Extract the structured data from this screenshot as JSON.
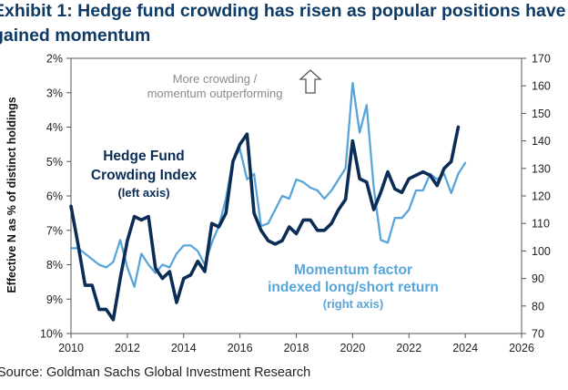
{
  "title": "Exhibit 1: Hedge fund crowding has risen as popular positions have gained momentum",
  "source": "Source: Goldman Sachs Global Investment Research",
  "colors": {
    "crowding": "#0b2d55",
    "momentum": "#58a5d9",
    "axis": "#555555",
    "title": "#0e3a66"
  },
  "chart_data": {
    "type": "line",
    "ylabel": "Effective N as % of distinct holdings",
    "x_ticks": [
      "2010",
      "2012",
      "2014",
      "2016",
      "2018",
      "2020",
      "2022",
      "2024",
      "2026"
    ],
    "xlim": [
      2010,
      2026
    ],
    "y_left": {
      "ticks": [
        "2%",
        "3%",
        "4%",
        "5%",
        "6%",
        "7%",
        "8%",
        "9%",
        "10%"
      ],
      "range": [
        2,
        10
      ],
      "inverted": true
    },
    "y_right": {
      "ticks": [
        "170",
        "160",
        "150",
        "140",
        "130",
        "120",
        "110",
        "100",
        "90",
        "80",
        "70"
      ],
      "range": [
        70,
        170
      ]
    },
    "annotations": {
      "crowding": [
        "Hedge Fund",
        "Crowding Index",
        "(left axis)"
      ],
      "momentum": [
        "Momentum factor",
        "indexed long/short return",
        "(right axis)"
      ],
      "top": [
        "More crowding /",
        "momentum outperforming"
      ]
    },
    "series": [
      {
        "key": "crowding",
        "axis": "left",
        "x": [
          2010.0,
          2010.25,
          2010.5,
          2010.75,
          2011.0,
          2011.25,
          2011.5,
          2011.75,
          2012.0,
          2012.25,
          2012.5,
          2012.75,
          2013.0,
          2013.25,
          2013.5,
          2013.75,
          2014.0,
          2014.25,
          2014.5,
          2014.75,
          2015.0,
          2015.25,
          2015.5,
          2015.75,
          2016.0,
          2016.25,
          2016.5,
          2016.75,
          2017.0,
          2017.25,
          2017.5,
          2017.75,
          2018.0,
          2018.25,
          2018.5,
          2018.75,
          2019.0,
          2019.25,
          2019.5,
          2019.75,
          2020.0,
          2020.25,
          2020.5,
          2020.75,
          2021.0,
          2021.25,
          2021.5,
          2021.75,
          2022.0,
          2022.25,
          2022.5,
          2022.75,
          2023.0,
          2023.25,
          2023.5,
          2023.75
        ],
        "values": [
          6.3,
          7.4,
          8.6,
          8.6,
          9.3,
          9.3,
          9.6,
          8.4,
          7.3,
          6.6,
          6.7,
          6.6,
          8.1,
          8.4,
          8.2,
          9.1,
          8.4,
          8.3,
          7.9,
          8.2,
          6.8,
          6.9,
          6.5,
          5.0,
          4.5,
          4.2,
          6.5,
          7.0,
          7.3,
          7.4,
          7.3,
          6.9,
          7.1,
          6.7,
          6.7,
          7.0,
          7.0,
          6.8,
          6.4,
          6.1,
          4.4,
          5.5,
          5.6,
          6.4,
          5.9,
          5.3,
          5.8,
          5.9,
          5.5,
          5.4,
          5.3,
          5.4,
          5.7,
          5.2,
          5.0,
          4.0
        ]
      },
      {
        "key": "momentum",
        "axis": "right",
        "x": [
          2010.0,
          2010.25,
          2010.5,
          2010.75,
          2011.0,
          2011.25,
          2011.5,
          2011.75,
          2012.0,
          2012.25,
          2012.5,
          2012.75,
          2013.0,
          2013.25,
          2013.5,
          2013.75,
          2014.0,
          2014.25,
          2014.5,
          2014.75,
          2015.0,
          2015.25,
          2015.5,
          2015.75,
          2016.0,
          2016.25,
          2016.5,
          2016.75,
          2017.0,
          2017.25,
          2017.5,
          2017.75,
          2018.0,
          2018.25,
          2018.5,
          2018.75,
          2019.0,
          2019.25,
          2019.5,
          2019.75,
          2020.0,
          2020.25,
          2020.5,
          2020.75,
          2021.0,
          2021.25,
          2021.5,
          2021.75,
          2022.0,
          2022.25,
          2022.5,
          2022.75,
          2023.0,
          2023.25,
          2023.5,
          2023.75,
          2024.0
        ],
        "values": [
          101,
          101,
          99,
          97,
          95,
          94,
          96,
          104,
          94,
          87,
          99,
          95,
          92,
          95,
          94,
          99,
          102,
          102,
          100,
          95,
          103,
          109,
          119,
          133,
          137,
          126,
          128,
          109,
          110,
          115,
          120,
          119,
          126,
          125,
          123,
          122,
          119,
          122,
          126,
          130,
          161,
          143,
          153,
          123,
          104,
          103,
          112,
          112,
          115,
          122,
          122,
          128,
          126,
          128,
          121,
          128,
          132
        ]
      }
    ]
  }
}
